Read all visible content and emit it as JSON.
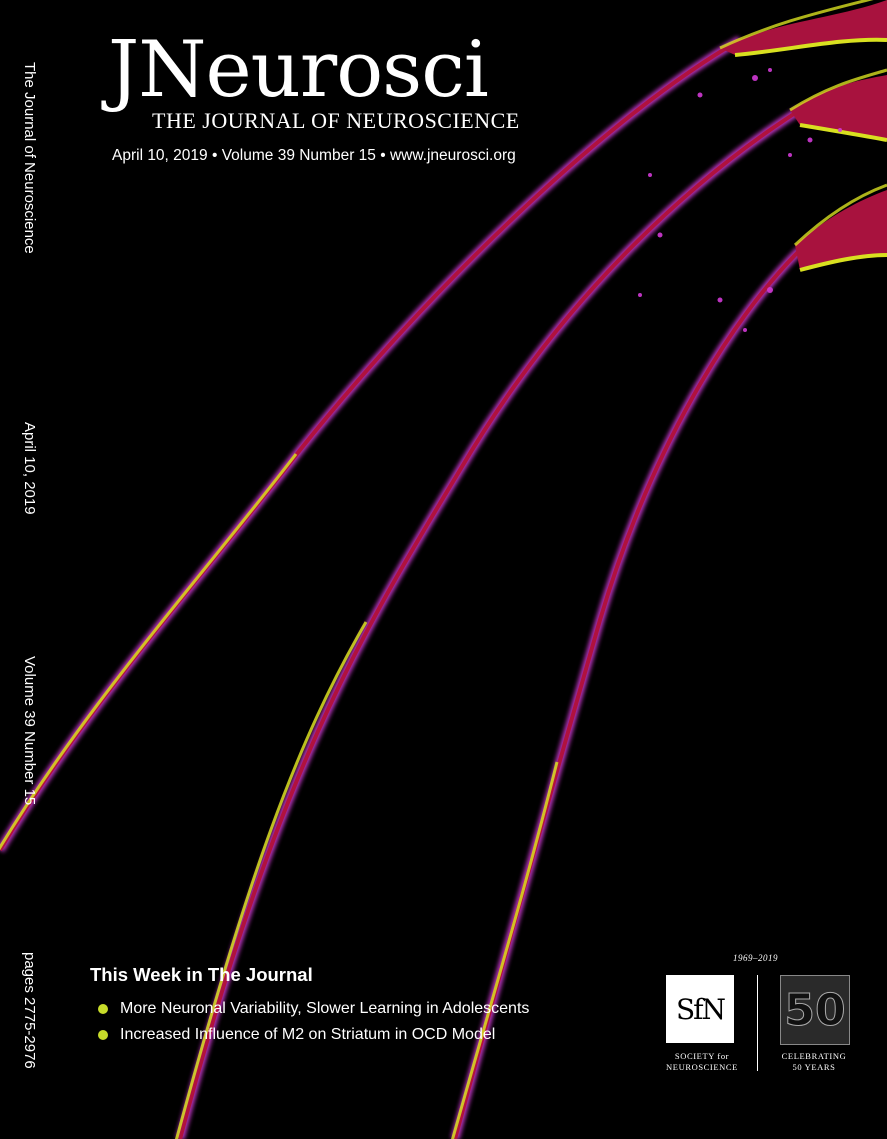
{
  "masthead": {
    "title": "JNeurosci",
    "subtitle": "THE JOURNAL OF NEUROSCIENCE",
    "issue_line": "April 10, 2019 • Volume 39 Number 15 • www.jneurosci.org"
  },
  "spine": {
    "journal": "The Journal of Neuroscience",
    "date": "April 10, 2019",
    "volume": "Volume 39 Number 15",
    "pages": "pages 2775-2976"
  },
  "this_week": {
    "heading": "This Week in The Journal",
    "items": [
      "More Neuronal Variability, Slower Learning in Adolescents",
      "Increased Influence of M2 on Striatum in OCD Model"
    ]
  },
  "sfn": {
    "years": "1969–2019",
    "logo": "SfN",
    "caption_line1": "SOCIETY for",
    "caption_line2": "NEUROSCIENCE",
    "fifty": "50",
    "celebrating_line1": "CELEBRATING",
    "celebrating_line2": "50 YEARS"
  },
  "colors": {
    "background": "#000000",
    "axon_magenta": "#d23ad6",
    "axon_red": "#b0123e",
    "axon_yellow": "#d8e020",
    "bullet": "#c8dc2a"
  },
  "cover_image": {
    "icon": "neuron-axons-image"
  }
}
